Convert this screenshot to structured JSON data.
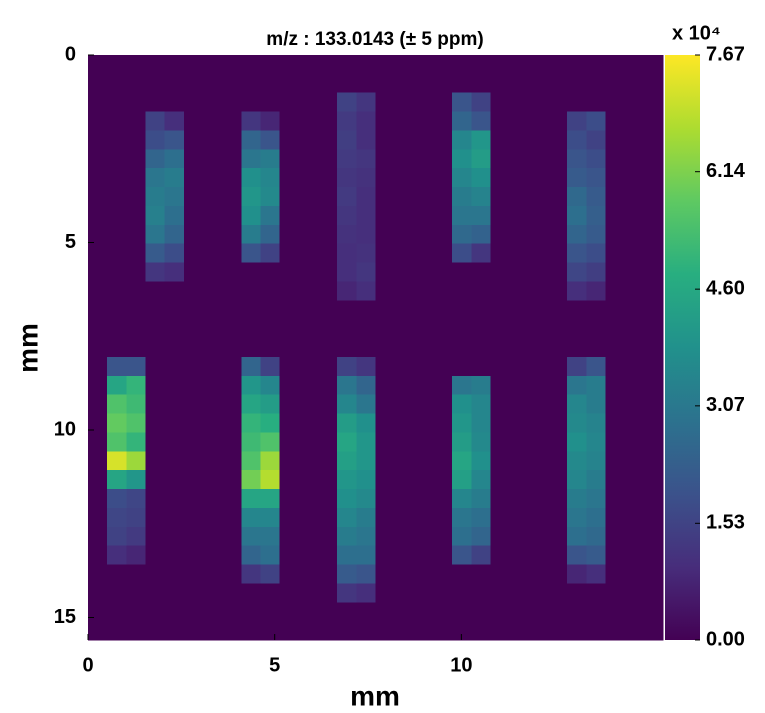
{
  "chart_data": {
    "type": "heatmap",
    "title": "m/z : 133.0143 (± 5 ppm)",
    "x_label": "mm",
    "y_label": "mm",
    "xlim": [
      0,
      15.4
    ],
    "ylim": [
      0,
      15.6
    ],
    "y_inverted": true,
    "xticks": [
      0,
      5,
      10
    ],
    "yticks": [
      0,
      5,
      10,
      15
    ],
    "colormap": "viridis",
    "clim": [
      0,
      7.67
    ],
    "colorbar_label": "x 10⁴",
    "colorbar_ticks": [
      {
        "value": 0,
        "label": "0.00"
      },
      1.53,
      3.07,
      {
        "value": 4.6,
        "label": "4.60"
      },
      6.14,
      7.67
    ],
    "z": [
      [
        0,
        0,
        0,
        0,
        0,
        0,
        0,
        0,
        0,
        0,
        0,
        0,
        0,
        0,
        0,
        0,
        0,
        0,
        0,
        0,
        0,
        0,
        0,
        0,
        0,
        0,
        0,
        0,
        0,
        0
      ],
      [
        0,
        0,
        0,
        0,
        0,
        0,
        0,
        0,
        0,
        0,
        0,
        0,
        0,
        0,
        0,
        0,
        0,
        0,
        0,
        0,
        0,
        0,
        0,
        0,
        0,
        0,
        0,
        0,
        0,
        0
      ],
      [
        0,
        0,
        0,
        0,
        0,
        0,
        0,
        0,
        0,
        0,
        0,
        0,
        0,
        1.5,
        1.2,
        0,
        0,
        0,
        0,
        2.0,
        1.5,
        0,
        0,
        0,
        0,
        0,
        0,
        0,
        0,
        0
      ],
      [
        0,
        0,
        0,
        1.5,
        1.0,
        0,
        0,
        0,
        1.2,
        0.8,
        0,
        0,
        0,
        1.3,
        1.0,
        0,
        0,
        0,
        0,
        2.5,
        2.0,
        0,
        0,
        0,
        0,
        1.5,
        1.8,
        0,
        0,
        0
      ],
      [
        0,
        0,
        0,
        1.8,
        2.0,
        0,
        0,
        0,
        2.5,
        2.0,
        0,
        0,
        0,
        1.4,
        1.0,
        0,
        0,
        0,
        0,
        3.5,
        4.0,
        0,
        0,
        0,
        0,
        1.8,
        1.5,
        0,
        0,
        0
      ],
      [
        0,
        0,
        0,
        2.5,
        2.8,
        0,
        0,
        0,
        3.0,
        3.2,
        0,
        0,
        0,
        1.3,
        1.2,
        0,
        0,
        0,
        0,
        3.8,
        4.2,
        0,
        0,
        0,
        0,
        2.0,
        1.8,
        0,
        0,
        0
      ],
      [
        0,
        0,
        0,
        3.0,
        3.2,
        0,
        0,
        0,
        3.8,
        3.5,
        0,
        0,
        0,
        1.2,
        1.1,
        0,
        0,
        0,
        0,
        3.5,
        3.8,
        0,
        0,
        0,
        0,
        2.2,
        2.0,
        0,
        0,
        0
      ],
      [
        0,
        0,
        0,
        3.2,
        3.0,
        0,
        0,
        0,
        4.0,
        3.6,
        0,
        0,
        0,
        1.3,
        1.0,
        0,
        0,
        0,
        0,
        3.2,
        3.4,
        0,
        0,
        0,
        0,
        2.6,
        2.2,
        0,
        0,
        0
      ],
      [
        0,
        0,
        0,
        3.3,
        2.8,
        0,
        0,
        0,
        3.8,
        3.0,
        0,
        0,
        0,
        1.2,
        1.0,
        0,
        0,
        0,
        0,
        3.0,
        3.0,
        0,
        0,
        0,
        0,
        2.8,
        2.3,
        0,
        0,
        0
      ],
      [
        0,
        0,
        0,
        3.0,
        2.5,
        0,
        0,
        0,
        3.2,
        2.5,
        0,
        0,
        0,
        1.1,
        1.0,
        0,
        0,
        0,
        0,
        2.6,
        2.4,
        0,
        0,
        0,
        0,
        2.5,
        2.2,
        0,
        0,
        0
      ],
      [
        0,
        0,
        0,
        2.2,
        1.8,
        0,
        0,
        0,
        2.0,
        1.5,
        0,
        0,
        0,
        1.0,
        1.1,
        0,
        0,
        0,
        0,
        1.8,
        1.2,
        0,
        0,
        0,
        0,
        2.0,
        1.8,
        0,
        0,
        0
      ],
      [
        0,
        0,
        0,
        1.2,
        1.0,
        0,
        0,
        0,
        0,
        0,
        0,
        0,
        0,
        1.0,
        1.2,
        0,
        0,
        0,
        0,
        0,
        0,
        0,
        0,
        0,
        0,
        1.6,
        1.4,
        0,
        0,
        0
      ],
      [
        0,
        0,
        0,
        0,
        0,
        0,
        0,
        0,
        0,
        0,
        0,
        0,
        0,
        0.8,
        1.0,
        0,
        0,
        0,
        0,
        0,
        0,
        0,
        0,
        0,
        0,
        1.0,
        0.8,
        0,
        0,
        0
      ],
      [
        0,
        0,
        0,
        0,
        0,
        0,
        0,
        0,
        0,
        0,
        0,
        0,
        0,
        0,
        0,
        0,
        0,
        0,
        0,
        0,
        0,
        0,
        0,
        0,
        0,
        0,
        0,
        0,
        0,
        0
      ],
      [
        0,
        0,
        0,
        0,
        0,
        0,
        0,
        0,
        0,
        0,
        0,
        0,
        0,
        0,
        0,
        0,
        0,
        0,
        0,
        0,
        0,
        0,
        0,
        0,
        0,
        0,
        0,
        0,
        0,
        0
      ],
      [
        0,
        0,
        0,
        0,
        0,
        0,
        0,
        0,
        0,
        0,
        0,
        0,
        0,
        0,
        0,
        0,
        0,
        0,
        0,
        0,
        0,
        0,
        0,
        0,
        0,
        0,
        0,
        0,
        0,
        0
      ],
      [
        0,
        2.0,
        2.0,
        0,
        0,
        0,
        0,
        0,
        2.5,
        1.5,
        0,
        0,
        0,
        1.5,
        1.2,
        0,
        0,
        0,
        0,
        0,
        0,
        0,
        0,
        0,
        0,
        1.5,
        2.0,
        0,
        0,
        0
      ],
      [
        0,
        4.5,
        5.0,
        0,
        0,
        0,
        0,
        0,
        4.0,
        3.5,
        0,
        0,
        0,
        3.0,
        2.5,
        0,
        0,
        0,
        0,
        3.0,
        3.2,
        0,
        0,
        0,
        0,
        3.0,
        3.2,
        0,
        0,
        0
      ],
      [
        0,
        5.5,
        5.2,
        0,
        0,
        0,
        0,
        0,
        4.5,
        4.2,
        0,
        0,
        0,
        3.5,
        3.0,
        0,
        0,
        0,
        0,
        3.8,
        3.5,
        0,
        0,
        0,
        0,
        3.5,
        3.2,
        0,
        0,
        0
      ],
      [
        0,
        5.8,
        5.5,
        0,
        0,
        0,
        0,
        0,
        5.0,
        4.8,
        0,
        0,
        0,
        4.2,
        3.8,
        0,
        0,
        0,
        0,
        4.0,
        3.5,
        0,
        0,
        0,
        0,
        3.6,
        3.4,
        0,
        0,
        0
      ],
      [
        0,
        5.5,
        5.0,
        0,
        0,
        0,
        0,
        0,
        5.2,
        5.5,
        0,
        0,
        0,
        4.5,
        4.0,
        0,
        0,
        0,
        0,
        4.2,
        3.6,
        0,
        0,
        0,
        0,
        3.8,
        3.5,
        0,
        0,
        0
      ],
      [
        0,
        7.2,
        6.5,
        0,
        0,
        0,
        0,
        0,
        5.5,
        6.5,
        0,
        0,
        0,
        4.3,
        4.0,
        0,
        0,
        0,
        0,
        4.5,
        3.8,
        0,
        0,
        0,
        0,
        3.6,
        3.4,
        0,
        0,
        0
      ],
      [
        0,
        4.5,
        4.0,
        0,
        0,
        0,
        0,
        0,
        6.0,
        6.8,
        0,
        0,
        0,
        4.0,
        3.8,
        0,
        0,
        0,
        0,
        4.3,
        3.5,
        0,
        0,
        0,
        0,
        3.5,
        3.2,
        0,
        0,
        0
      ],
      [
        0,
        1.8,
        1.6,
        0,
        0,
        0,
        0,
        0,
        4.5,
        4.5,
        0,
        0,
        0,
        3.8,
        3.6,
        0,
        0,
        0,
        0,
        3.5,
        3.2,
        0,
        0,
        0,
        0,
        3.2,
        3.0,
        0,
        0,
        0
      ],
      [
        0,
        1.6,
        1.5,
        0,
        0,
        0,
        0,
        0,
        3.5,
        3.5,
        0,
        0,
        0,
        3.5,
        3.2,
        0,
        0,
        0,
        0,
        3.0,
        2.8,
        0,
        0,
        0,
        0,
        3.0,
        2.8,
        0,
        0,
        0
      ],
      [
        0,
        1.5,
        1.3,
        0,
        0,
        0,
        0,
        0,
        3.0,
        3.0,
        0,
        0,
        0,
        3.2,
        3.0,
        0,
        0,
        0,
        0,
        2.8,
        2.5,
        0,
        0,
        0,
        0,
        2.8,
        2.6,
        0,
        0,
        0
      ],
      [
        0,
        1.0,
        0.8,
        0,
        0,
        0,
        0,
        0,
        2.5,
        2.8,
        0,
        0,
        0,
        2.8,
        2.8,
        0,
        0,
        0,
        0,
        2.0,
        1.5,
        0,
        0,
        0,
        0,
        2.0,
        2.2,
        0,
        0,
        0
      ],
      [
        0,
        0,
        0,
        0,
        0,
        0,
        0,
        0,
        1.2,
        1.5,
        0,
        0,
        0,
        2.2,
        2.0,
        0,
        0,
        0,
        0,
        0,
        0,
        0,
        0,
        0,
        0,
        0.8,
        1.0,
        0,
        0,
        0
      ],
      [
        0,
        0,
        0,
        0,
        0,
        0,
        0,
        0,
        0,
        0,
        0,
        0,
        0,
        1.2,
        1.0,
        0,
        0,
        0,
        0,
        0,
        0,
        0,
        0,
        0,
        0,
        0,
        0,
        0,
        0,
        0
      ],
      [
        0,
        0,
        0,
        0,
        0,
        0,
        0,
        0,
        0,
        0,
        0,
        0,
        0,
        0,
        0,
        0,
        0,
        0,
        0,
        0,
        0,
        0,
        0,
        0,
        0,
        0,
        0,
        0,
        0,
        0
      ],
      [
        0,
        0,
        0,
        0,
        0,
        0,
        0,
        0,
        0,
        0,
        0,
        0,
        0,
        0,
        0,
        0,
        0,
        0,
        0,
        0,
        0,
        0,
        0,
        0,
        0,
        0,
        0,
        0,
        0,
        0
      ]
    ]
  }
}
